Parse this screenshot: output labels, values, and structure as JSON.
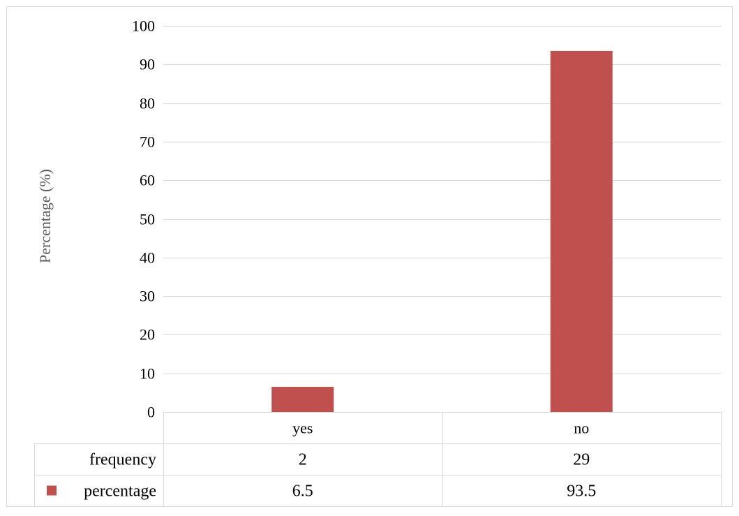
{
  "chart_data": {
    "type": "bar",
    "categories": [
      "yes",
      "no"
    ],
    "series": [
      {
        "name": "percentage",
        "values": [
          6.5,
          93.5
        ],
        "color": "#c0504d"
      }
    ],
    "data_table": {
      "rows": [
        {
          "label": "frequency",
          "values": [
            "2",
            "29"
          ],
          "legend_key": false
        },
        {
          "label": "percentage",
          "values": [
            "6.5",
            "93.5"
          ],
          "legend_key": true
        }
      ]
    },
    "ylabel": "Percentage (%)",
    "ylim": [
      0,
      100
    ],
    "yticks": [
      "0",
      "10",
      "20",
      "30",
      "40",
      "50",
      "60",
      "70",
      "80",
      "90",
      "100"
    ],
    "grid": true,
    "legend": "data table"
  }
}
